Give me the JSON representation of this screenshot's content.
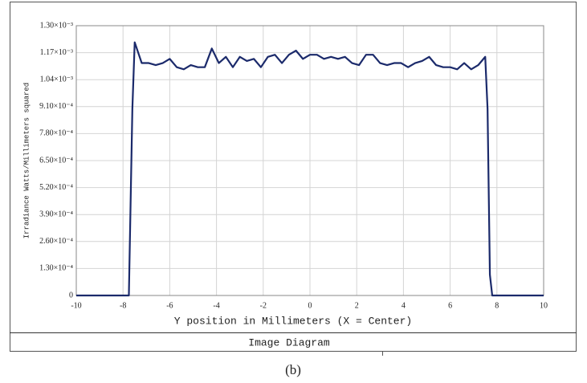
{
  "chart_data": {
    "type": "line",
    "x_label": "Y position in Millimeters (X = Center)",
    "y_label": "Irradiance Watts/Millimeters squared",
    "footer": "Image Diagram",
    "caption": "(b)",
    "x": [
      -10,
      -7.75,
      -7.6,
      -7.5,
      -7.2,
      -6.9,
      -6.6,
      -6.3,
      -6.0,
      -5.7,
      -5.4,
      -5.1,
      -4.8,
      -4.5,
      -4.2,
      -3.9,
      -3.6,
      -3.3,
      -3.0,
      -2.7,
      -2.4,
      -2.1,
      -1.8,
      -1.5,
      -1.2,
      -0.9,
      -0.6,
      -0.3,
      0,
      0.3,
      0.6,
      0.9,
      1.2,
      1.5,
      1.8,
      2.1,
      2.4,
      2.7,
      3.0,
      3.3,
      3.6,
      3.9,
      4.2,
      4.5,
      4.8,
      5.1,
      5.4,
      5.7,
      6.0,
      6.3,
      6.6,
      6.9,
      7.2,
      7.5,
      7.6,
      7.7,
      7.8,
      10
    ],
    "series": [
      {
        "color": "#1b2a6b",
        "values": [
          0,
          0,
          0.0009,
          0.00122,
          0.00112,
          0.00112,
          0.00111,
          0.00112,
          0.00114,
          0.0011,
          0.00109,
          0.00111,
          0.0011,
          0.0011,
          0.00119,
          0.00112,
          0.00115,
          0.0011,
          0.00115,
          0.00113,
          0.00114,
          0.0011,
          0.00115,
          0.00116,
          0.00112,
          0.00116,
          0.00118,
          0.00114,
          0.00116,
          0.00116,
          0.00114,
          0.00115,
          0.00114,
          0.00115,
          0.00112,
          0.00111,
          0.00116,
          0.00116,
          0.00112,
          0.00111,
          0.00112,
          0.00112,
          0.0011,
          0.00112,
          0.00113,
          0.00115,
          0.00111,
          0.0011,
          0.0011,
          0.00109,
          0.00112,
          0.00109,
          0.00111,
          0.00115,
          0.0009,
          0.0001,
          0,
          0
        ]
      }
    ],
    "xlim": [
      -10,
      10
    ],
    "xticks": [
      -10,
      -8,
      -6,
      -4,
      -2,
      0,
      2,
      4,
      6,
      8,
      10
    ],
    "ylim": [
      0,
      0.0013
    ],
    "yticks": [
      0,
      {
        "value": 0.00013,
        "label": "1.30×10⁻⁴"
      },
      {
        "value": 0.00026,
        "label": "2.60×10⁻⁴"
      },
      {
        "value": 0.00039,
        "label": "3.90×10⁻⁴"
      },
      {
        "value": 0.00052,
        "label": "5.20×10⁻⁴"
      },
      {
        "value": 0.00065,
        "label": "6.50×10⁻⁴"
      },
      {
        "value": 0.00078,
        "label": "7.80×10⁻⁴"
      },
      {
        "value": 0.00091,
        "label": "9.10×10⁻⁴"
      },
      {
        "value": 0.00104,
        "label": "1.04×10⁻³"
      },
      {
        "value": 0.00117,
        "label": "1.17×10⁻³"
      },
      {
        "value": 0.0013,
        "label": "1.30×10⁻³"
      }
    ],
    "grid": true
  }
}
